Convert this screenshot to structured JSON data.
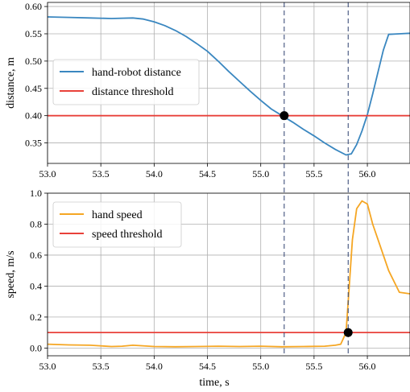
{
  "chart_data": [
    {
      "type": "line",
      "xlabel": "",
      "ylabel": "distance, m",
      "xlim": [
        53.0,
        56.4
      ],
      "ylim": [
        0.3125,
        0.6075
      ],
      "xticks": [
        53.0,
        53.5,
        54.0,
        54.5,
        55.0,
        55.5,
        56.0
      ],
      "xtick_labels": [
        "53.0",
        "53.5",
        "54.0",
        "54.5",
        "55.0",
        "55.5",
        "56.0"
      ],
      "yticks": [
        0.35,
        0.4,
        0.45,
        0.5,
        0.55,
        0.6
      ],
      "ytick_labels": [
        "0.35",
        "0.40",
        "0.45",
        "0.50",
        "0.55",
        "0.60"
      ],
      "grid": true,
      "legend": "center-left",
      "series": [
        {
          "name": "hand-robot distance",
          "color": "#3a87c0",
          "x": [
            53.0,
            53.2,
            53.4,
            53.6,
            53.8,
            53.9,
            54.0,
            54.1,
            54.2,
            54.3,
            54.4,
            54.5,
            54.6,
            54.7,
            54.8,
            54.9,
            55.0,
            55.1,
            55.2,
            55.3,
            55.4,
            55.5,
            55.6,
            55.7,
            55.8,
            55.85,
            55.9,
            55.95,
            56.0,
            56.05,
            56.1,
            56.15,
            56.2,
            56.3,
            56.4
          ],
          "y": [
            0.581,
            0.58,
            0.579,
            0.578,
            0.579,
            0.577,
            0.572,
            0.565,
            0.556,
            0.545,
            0.532,
            0.518,
            0.5,
            0.481,
            0.463,
            0.445,
            0.428,
            0.412,
            0.4,
            0.388,
            0.375,
            0.363,
            0.35,
            0.338,
            0.328,
            0.33,
            0.347,
            0.372,
            0.402,
            0.44,
            0.48,
            0.52,
            0.549,
            0.55,
            0.551
          ]
        },
        {
          "name": "distance threshold",
          "color": "#e8413a",
          "x": [
            53.0,
            56.4
          ],
          "y": [
            0.4,
            0.4
          ]
        }
      ],
      "markers": [
        {
          "x": 55.22,
          "y": 0.4
        }
      ],
      "vlines": [
        55.22,
        55.82
      ]
    },
    {
      "type": "line",
      "xlabel": "time, s",
      "ylabel": "speed, m/s",
      "xlim": [
        53.0,
        56.4
      ],
      "ylim": [
        -0.05,
        1.0
      ],
      "xticks": [
        53.0,
        53.5,
        54.0,
        54.5,
        55.0,
        55.5,
        56.0
      ],
      "xtick_labels": [
        "53.0",
        "53.5",
        "54.0",
        "54.5",
        "55.0",
        "55.5",
        "56.0"
      ],
      "yticks": [
        0.0,
        0.2,
        0.4,
        0.6,
        0.8,
        1.0
      ],
      "ytick_labels": [
        "0.0",
        "0.2",
        "0.4",
        "0.6",
        "0.8",
        "1.0"
      ],
      "grid": true,
      "legend": "upper-left",
      "series": [
        {
          "name": "hand speed",
          "color": "#f5a623",
          "x": [
            53.0,
            53.2,
            53.4,
            53.6,
            53.7,
            53.8,
            54.0,
            54.2,
            54.4,
            54.6,
            54.8,
            55.0,
            55.2,
            55.4,
            55.6,
            55.7,
            55.75,
            55.8,
            55.83,
            55.86,
            55.9,
            55.95,
            56.0,
            56.05,
            56.1,
            56.2,
            56.3,
            56.4
          ],
          "y": [
            0.025,
            0.02,
            0.018,
            0.01,
            0.012,
            0.018,
            0.01,
            0.008,
            0.01,
            0.012,
            0.01,
            0.012,
            0.008,
            0.01,
            0.012,
            0.018,
            0.025,
            0.1,
            0.4,
            0.7,
            0.9,
            0.95,
            0.93,
            0.8,
            0.7,
            0.5,
            0.36,
            0.35
          ]
        },
        {
          "name": "speed threshold",
          "color": "#e8413a",
          "x": [
            53.0,
            56.4
          ],
          "y": [
            0.1,
            0.1
          ]
        }
      ],
      "markers": [
        {
          "x": 55.82,
          "y": 0.1
        }
      ],
      "vlines": [
        55.22,
        55.82
      ]
    }
  ]
}
